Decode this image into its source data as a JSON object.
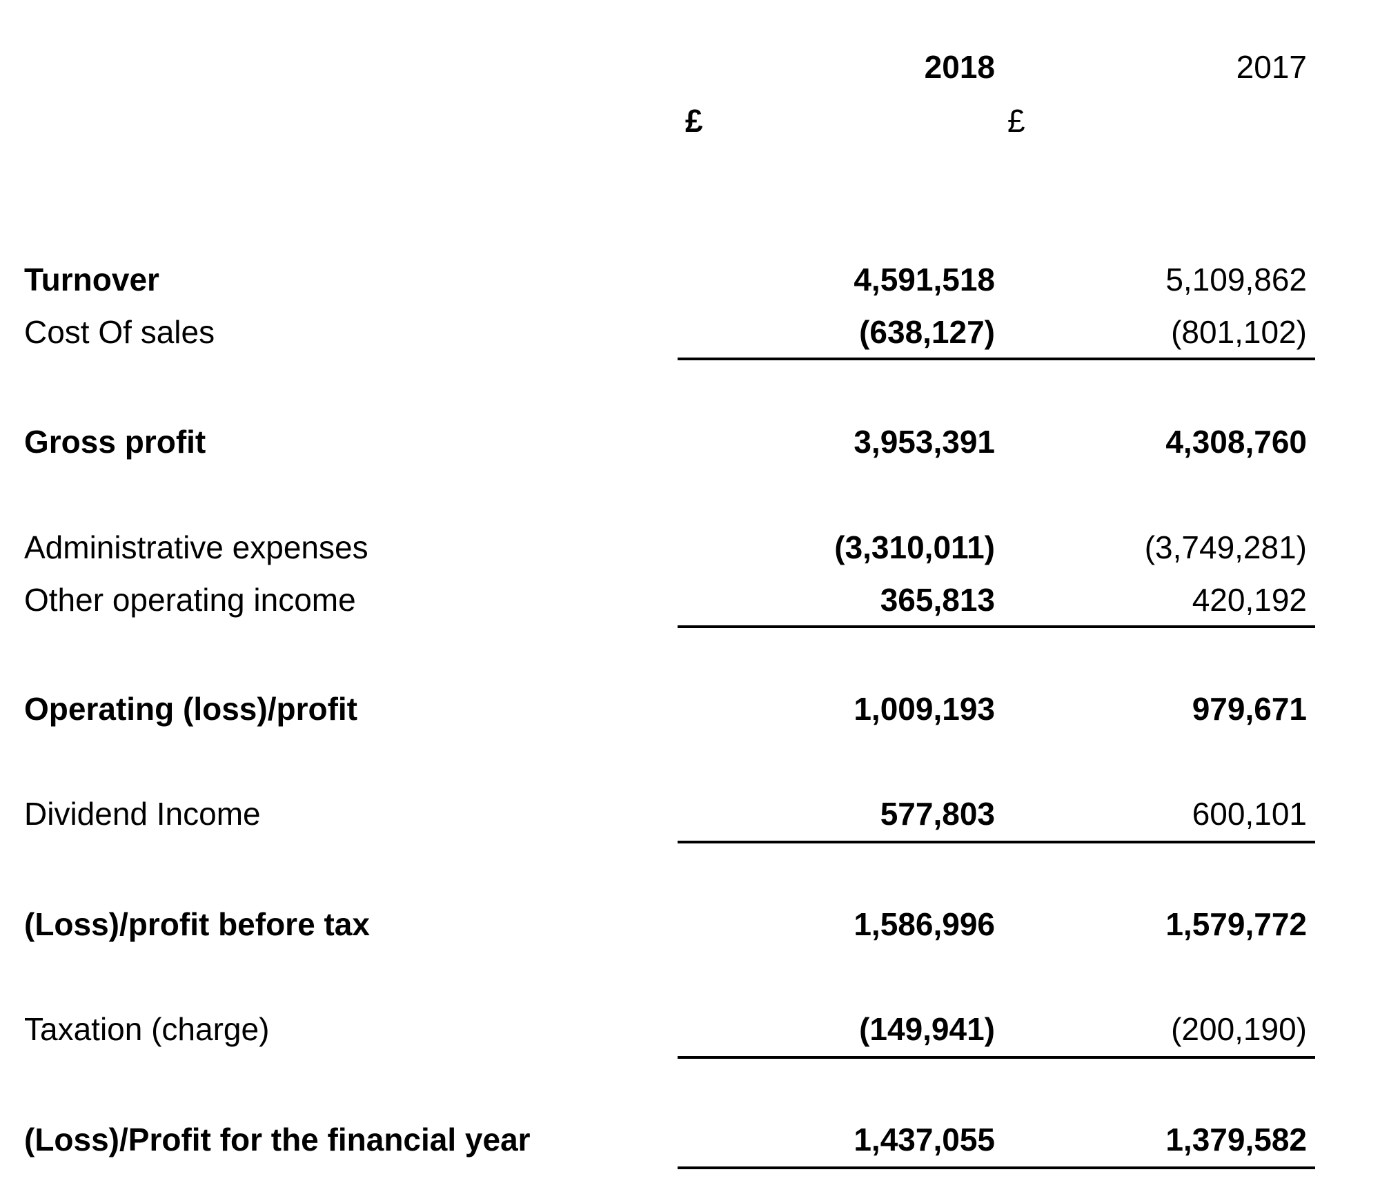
{
  "header": {
    "year_current": "2018",
    "year_prior": "2017",
    "currency_current": "£",
    "currency_prior": "£"
  },
  "rows": [
    {
      "label": "Turnover",
      "current": "4,591,518",
      "prior": "5,109,862"
    },
    {
      "label": "Cost Of sales",
      "current": "(638,127)",
      "prior": "(801,102)"
    },
    {
      "label": "Gross profit",
      "current": "3,953,391",
      "prior": "4,308,760"
    },
    {
      "label": "Administrative expenses",
      "current": "(3,310,011)",
      "prior": "(3,749,281)"
    },
    {
      "label": "Other operating income",
      "current": "365,813",
      "prior": "420,192"
    },
    {
      "label": "Operating (loss)/profit",
      "current": "1,009,193",
      "prior": "979,671"
    },
    {
      "label": "Dividend Income",
      "current": "577,803",
      "prior": "600,101"
    },
    {
      "label": "(Loss)/profit before tax",
      "current": "1,586,996",
      "prior": "1,579,772"
    },
    {
      "label": "Taxation (charge)",
      "current": "(149,941)",
      "prior": "(200,190)"
    },
    {
      "label": "(Loss)/Profit for the financial year",
      "current": "1,437,055",
      "prior": "1,379,582"
    }
  ]
}
